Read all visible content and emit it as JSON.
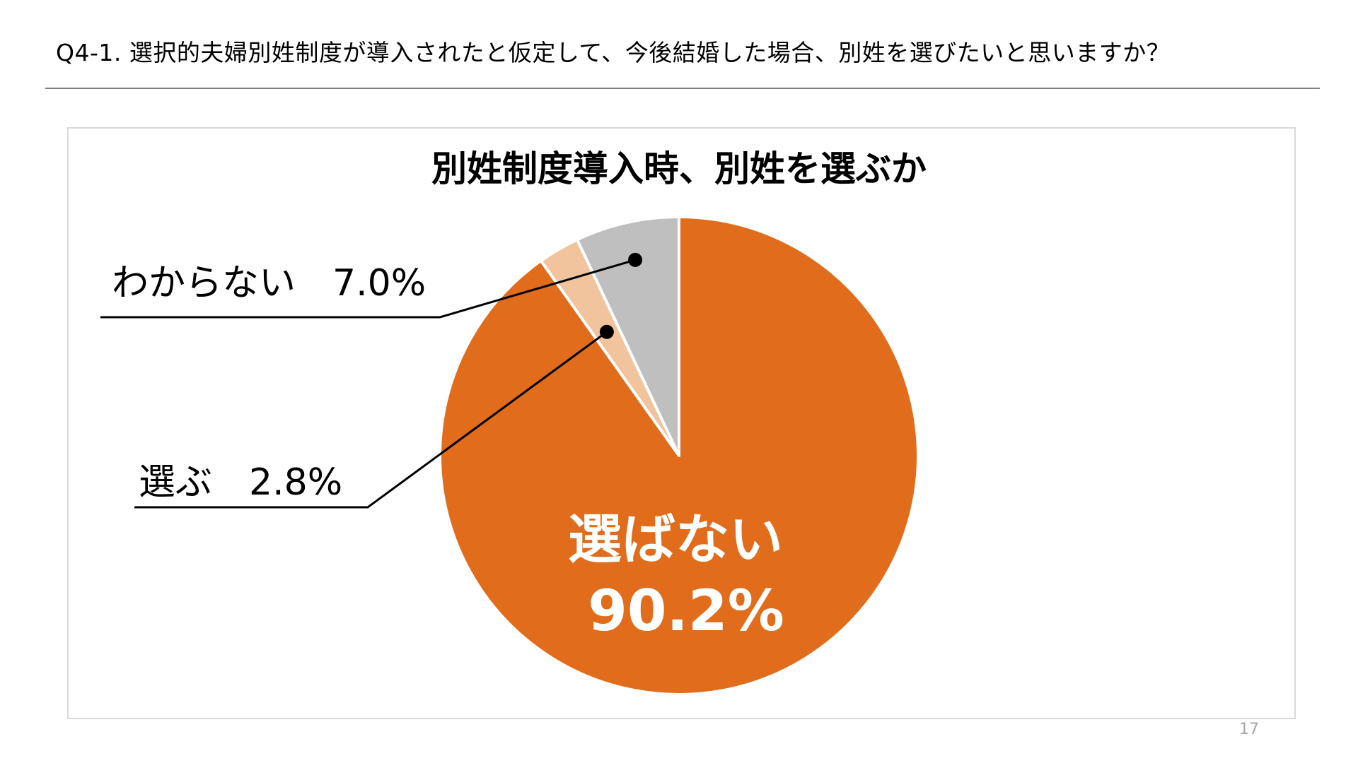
{
  "slide": {
    "title": "Q4-1. 選択的夫婦別姓制度が導入されたと仮定して、今後結婚した場合、別姓を選びたいと思いますか？",
    "page_number": "17"
  },
  "colors": {
    "not_choose": "#E06C1C",
    "choose": "#F2C49E",
    "unknown": "#BFBFBF",
    "frame": "#D9D9D9",
    "rule": "#7F7F7F"
  },
  "chart_data": {
    "type": "pie",
    "title": "別姓制度導入時、別姓を選ぶか",
    "start": "12 o'clock, clockwise",
    "slices": [
      {
        "label": "選ばない",
        "value": 90.2,
        "value_label": "90.2%",
        "color": "#E06C1C"
      },
      {
        "label": "選ぶ",
        "value": 2.8,
        "value_label": "2.8%",
        "color": "#F2C49E"
      },
      {
        "label": "わからない",
        "value": 7.0,
        "value_label": "7.0%",
        "color": "#BFBFBF"
      }
    ],
    "annotations": [
      {
        "text": "わからない　7.0%"
      },
      {
        "text": "選ぶ　2.8%"
      },
      {
        "text": "選ばない"
      },
      {
        "text": "90.2%"
      }
    ]
  }
}
